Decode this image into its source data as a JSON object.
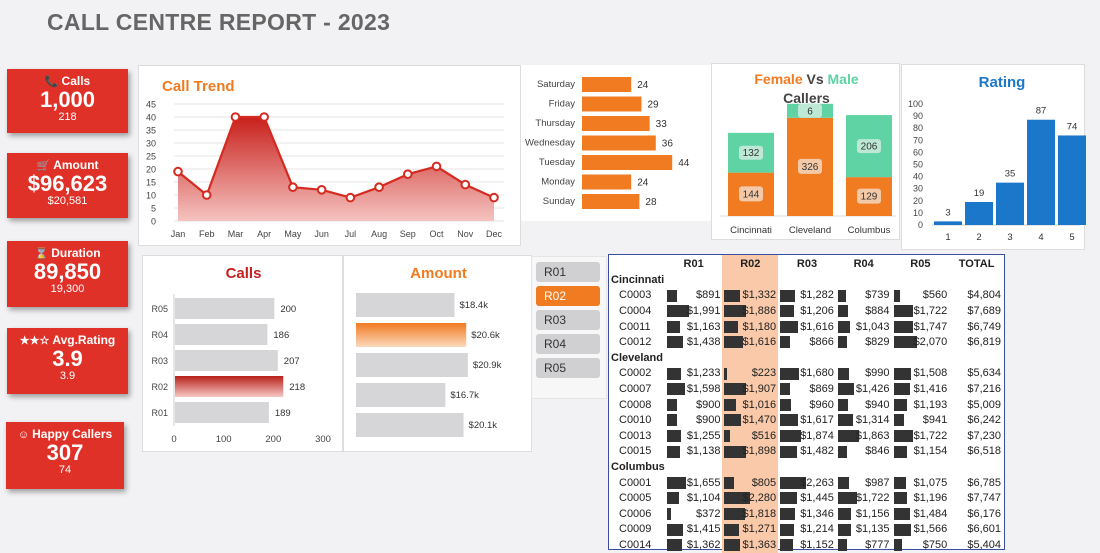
{
  "title": "CALL CENTRE REPORT - 2023",
  "kpis": [
    {
      "label": "Calls",
      "icon": "phone-icon",
      "glyph": "📞",
      "value": "1,000",
      "sub": "218"
    },
    {
      "label": "Amount",
      "icon": "cart-icon",
      "glyph": "🛒",
      "value": "$96,623",
      "sub": "$20,581"
    },
    {
      "label": "Duration",
      "icon": "hourglass-icon",
      "glyph": "⌛",
      "value": "89,850",
      "sub": "19,300"
    },
    {
      "label": "Avg.Rating",
      "icon": "stars-icon",
      "glyph": "★★☆",
      "value": "3.9",
      "sub": "3.9"
    },
    {
      "label": "Happy Callers",
      "icon": "smiley-icon",
      "glyph": "☺",
      "value": "307",
      "sub": "74"
    }
  ],
  "call_trend": {
    "title": "Call Trend",
    "months": [
      "Jan",
      "Feb",
      "Mar",
      "Apr",
      "May",
      "Jun",
      "Jul",
      "Aug",
      "Sep",
      "Oct",
      "Nov",
      "Dec"
    ],
    "values": [
      19,
      10,
      40,
      40,
      13,
      12,
      9,
      13,
      18,
      21,
      14,
      9
    ],
    "ylim": [
      0,
      45
    ],
    "yticks": [
      "0",
      "5",
      "10",
      "15",
      "20",
      "25",
      "30",
      "35",
      "40",
      "45"
    ]
  },
  "weekday": {
    "days": [
      "Saturday",
      "Friday",
      "Thursday",
      "Wednesday",
      "Tuesday",
      "Monday",
      "Sunday"
    ],
    "values": [
      24,
      29,
      33,
      36,
      44,
      24,
      28
    ]
  },
  "gender": {
    "title_female": "Female",
    "title_vs": "Vs",
    "title_male": "Male",
    "title_line2": "Callers",
    "cities": [
      "Cincinnati",
      "Cleveland",
      "Columbus"
    ],
    "female": [
      144,
      326,
      129
    ],
    "male": [
      132,
      6,
      206
    ],
    "colors": {
      "female": "#f07b21",
      "male": "#5fd3a4"
    }
  },
  "rating": {
    "title": "Rating",
    "categories": [
      "1",
      "2",
      "3",
      "4",
      "5"
    ],
    "values": [
      3,
      19,
      35,
      87,
      74
    ],
    "ylim": [
      0,
      100
    ],
    "yticks": [
      "0",
      "10",
      "20",
      "30",
      "40",
      "50",
      "60",
      "70",
      "80",
      "90",
      "100"
    ]
  },
  "calls_region": {
    "title": "Calls",
    "regions": [
      "R05",
      "R04",
      "R03",
      "R02",
      "R01"
    ],
    "values": [
      200,
      186,
      207,
      218,
      189
    ],
    "highlight": "R02",
    "xticks": [
      "0",
      "100",
      "200",
      "300"
    ],
    "xlim": [
      0,
      300
    ]
  },
  "amount_region": {
    "title": "Amount",
    "values": [
      18.4,
      20.6,
      20.9,
      16.7,
      20.1
    ],
    "labels": [
      "$18.4k",
      "$20.6k",
      "$20.9k",
      "$16.7k",
      "$20.1k"
    ],
    "highlight_index": 1
  },
  "slicer": [
    "R01",
    "R02",
    "R03",
    "R04",
    "R05"
  ],
  "slicer_active": "R02",
  "table": {
    "headers": [
      "",
      "R01",
      "R02",
      "R03",
      "R04",
      "R05",
      "TOTAL"
    ],
    "groups": [
      {
        "name": "Cincinnati",
        "rows": [
          {
            "id": "C0003",
            "vals": [
              891,
              1332,
              1282,
              739,
              560
            ],
            "labels": [
              "$891",
              "$1,332",
              "$1,282",
              "$739",
              "$560"
            ],
            "total": "$4,804"
          },
          {
            "id": "C0004",
            "vals": [
              1991,
              1886,
              1206,
              884,
              1722
            ],
            "labels": [
              "$1,991",
              "$1,886",
              "$1,206",
              "$884",
              "$1,722"
            ],
            "total": "$7,689"
          },
          {
            "id": "C0011",
            "vals": [
              1163,
              1180,
              1616,
              1043,
              1747
            ],
            "labels": [
              "$1,163",
              "$1,180",
              "$1,616",
              "$1,043",
              "$1,747"
            ],
            "total": "$6,749"
          },
          {
            "id": "C0012",
            "vals": [
              1438,
              1616,
              866,
              829,
              2070
            ],
            "labels": [
              "$1,438",
              "$1,616",
              "$866",
              "$829",
              "$2,070"
            ],
            "total": "$6,819"
          }
        ]
      },
      {
        "name": "Cleveland",
        "rows": [
          {
            "id": "C0002",
            "vals": [
              1233,
              223,
              1680,
              990,
              1508
            ],
            "labels": [
              "$1,233",
              "$223",
              "$1,680",
              "$990",
              "$1,508"
            ],
            "total": "$5,634"
          },
          {
            "id": "C0007",
            "vals": [
              1598,
              1907,
              869,
              1426,
              1416
            ],
            "labels": [
              "$1,598",
              "$1,907",
              "$869",
              "$1,426",
              "$1,416"
            ],
            "total": "$7,216"
          },
          {
            "id": "C0008",
            "vals": [
              900,
              1016,
              960,
              940,
              1193
            ],
            "labels": [
              "$900",
              "$1,016",
              "$960",
              "$940",
              "$1,193"
            ],
            "total": "$5,009"
          },
          {
            "id": "C0010",
            "vals": [
              900,
              1470,
              1617,
              1314,
              941
            ],
            "labels": [
              "$900",
              "$1,470",
              "$1,617",
              "$1,314",
              "$941"
            ],
            "total": "$6,242"
          },
          {
            "id": "C0013",
            "vals": [
              1255,
              516,
              1874,
              1863,
              1722
            ],
            "labels": [
              "$1,255",
              "$516",
              "$1,874",
              "$1,863",
              "$1,722"
            ],
            "total": "$7,230"
          },
          {
            "id": "C0015",
            "vals": [
              1138,
              1898,
              1482,
              846,
              1154
            ],
            "labels": [
              "$1,138",
              "$1,898",
              "$1,482",
              "$846",
              "$1,154"
            ],
            "total": "$6,518"
          }
        ]
      },
      {
        "name": "Columbus",
        "rows": [
          {
            "id": "C0001",
            "vals": [
              1655,
              805,
              2263,
              987,
              1075
            ],
            "labels": [
              "$1,655",
              "$805",
              "$2,263",
              "$987",
              "$1,075"
            ],
            "total": "$6,785"
          },
          {
            "id": "C0005",
            "vals": [
              1104,
              2280,
              1445,
              1722,
              1196
            ],
            "labels": [
              "$1,104",
              "$2,280",
              "$1,445",
              "$1,722",
              "$1,196"
            ],
            "total": "$7,747"
          },
          {
            "id": "C0006",
            "vals": [
              372,
              1818,
              1346,
              1156,
              1484
            ],
            "labels": [
              "$372",
              "$1,818",
              "$1,346",
              "$1,156",
              "$1,484"
            ],
            "total": "$6,176"
          },
          {
            "id": "C0009",
            "vals": [
              1415,
              1271,
              1214,
              1135,
              1566
            ],
            "labels": [
              "$1,415",
              "$1,271",
              "$1,214",
              "$1,135",
              "$1,566"
            ],
            "total": "$6,601"
          },
          {
            "id": "C0014",
            "vals": [
              1362,
              1363,
              1152,
              777,
              750
            ],
            "labels": [
              "$1,362",
              "$1,363",
              "$1,152",
              "$777",
              "$750"
            ],
            "total": "$5,404"
          }
        ]
      }
    ]
  },
  "colors": {
    "kpi": "#e03128",
    "accent": "#f07b21",
    "trend": "#d42a20",
    "rating": "#1b77c9",
    "male": "#5fd3a4",
    "bar_grey": "#d6d6d9"
  }
}
